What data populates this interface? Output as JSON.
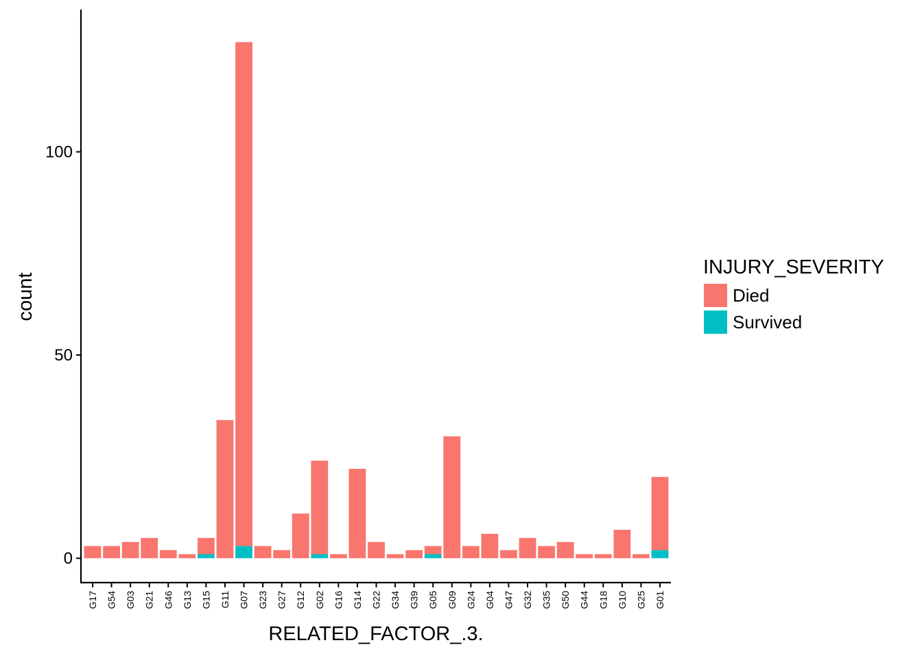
{
  "chart_data": {
    "type": "bar",
    "stacked": true,
    "xlabel": "RELATED_FACTOR_.3.",
    "ylabel": "count",
    "ylim": [
      -6,
      135
    ],
    "yticks": [
      0,
      50,
      100
    ],
    "categories": [
      "G17",
      "G54",
      "G03",
      "G21",
      "G46",
      "G13",
      "G15",
      "G11",
      "G07",
      "G23",
      "G27",
      "G12",
      "G02",
      "G16",
      "G14",
      "G22",
      "G34",
      "G39",
      "G05",
      "G09",
      "G24",
      "G04",
      "G47",
      "G32",
      "G35",
      "G50",
      "G44",
      "G18",
      "G10",
      "G25",
      "G01"
    ],
    "series": [
      {
        "name": "Survived",
        "color": "#00BFC4",
        "values": [
          0,
          0,
          0,
          0,
          0,
          0,
          1,
          0,
          3,
          0,
          0,
          0,
          1,
          0,
          0,
          0,
          0,
          0,
          1,
          0,
          0,
          0,
          0,
          0,
          0,
          0,
          0,
          0,
          0,
          0,
          2
        ]
      },
      {
        "name": "Died",
        "color": "#F8766D",
        "values": [
          3,
          3,
          4,
          5,
          2,
          1,
          4,
          34,
          124,
          3,
          2,
          11,
          23,
          1,
          22,
          4,
          1,
          2,
          2,
          30,
          3,
          6,
          2,
          5,
          3,
          4,
          1,
          1,
          7,
          1,
          18
        ]
      }
    ],
    "legend": {
      "title": "INJURY_SEVERITY",
      "position": "right",
      "entries": [
        {
          "label": "Died",
          "color": "#F8766D"
        },
        {
          "label": "Survived",
          "color": "#00BFC4"
        }
      ]
    }
  }
}
